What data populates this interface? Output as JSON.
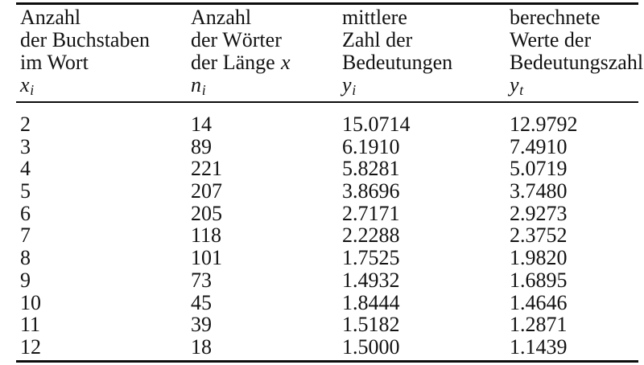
{
  "page": {
    "background": "#ffffff",
    "text_color": "#131313",
    "rule_color": "#0c0c0c"
  },
  "table": {
    "header": {
      "cols": [
        {
          "lines": [
            "Anzahl",
            "der Buchstaben",
            "im Wort"
          ],
          "symbol_base": "x",
          "symbol_sub": "i"
        },
        {
          "lines": [
            "Anzahl",
            "der Wörter",
            "der Länge"
          ],
          "inline_var": "x",
          "symbol_base": "n",
          "symbol_sub": "i"
        },
        {
          "lines": [
            "mittlere",
            "Zahl der",
            "Bedeutungen"
          ],
          "symbol_base": "y",
          "symbol_sub": "i"
        },
        {
          "lines": [
            "berechnete",
            "Werte der",
            "Bedeutungszahl"
          ],
          "symbol_base": "y",
          "symbol_sub": "t"
        }
      ]
    },
    "rows": [
      {
        "xi": "2",
        "ni": "14",
        "yi": "15.0714",
        "yt": "12.9792"
      },
      {
        "xi": "3",
        "ni": "89",
        "yi": "6.1910",
        "yt": "7.4910"
      },
      {
        "xi": "4",
        "ni": "221",
        "yi": "5.8281",
        "yt": "5.0719"
      },
      {
        "xi": "5",
        "ni": "207",
        "yi": "3.8696",
        "yt": "3.7480"
      },
      {
        "xi": "6",
        "ni": "205",
        "yi": "2.7171",
        "yt": "2.9273"
      },
      {
        "xi": "7",
        "ni": "118",
        "yi": "2.2288",
        "yt": "2.3752"
      },
      {
        "xi": "8",
        "ni": "101",
        "yi": "1.7525",
        "yt": "1.9820"
      },
      {
        "xi": "9",
        "ni": "73",
        "yi": "1.4932",
        "yt": "1.6895"
      },
      {
        "xi": "10",
        "ni": "45",
        "yi": "1.8444",
        "yt": "1.4646"
      },
      {
        "xi": "11",
        "ni": "39",
        "yi": "1.5182",
        "yt": "1.2871"
      },
      {
        "xi": "12",
        "ni": "18",
        "yi": "1.5000",
        "yt": "1.1439"
      }
    ]
  }
}
